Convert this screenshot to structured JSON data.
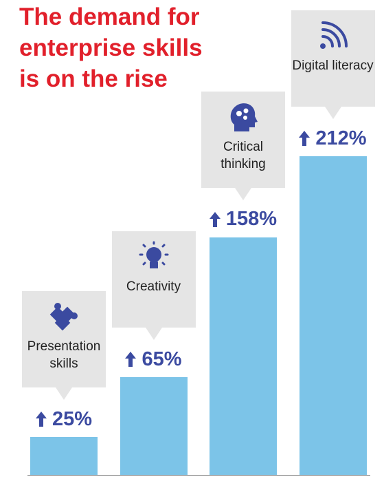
{
  "chart_data": {
    "type": "bar",
    "title": "The demand for enterprise skills is on the rise",
    "categories": [
      "Presentation skills",
      "Creativity",
      "Critical thinking",
      "Digital literacy"
    ],
    "values": [
      25,
      65,
      158,
      212
    ],
    "value_labels": [
      "25%",
      "65%",
      "158%",
      "212%"
    ],
    "color": "#7cc4e8"
  }
}
